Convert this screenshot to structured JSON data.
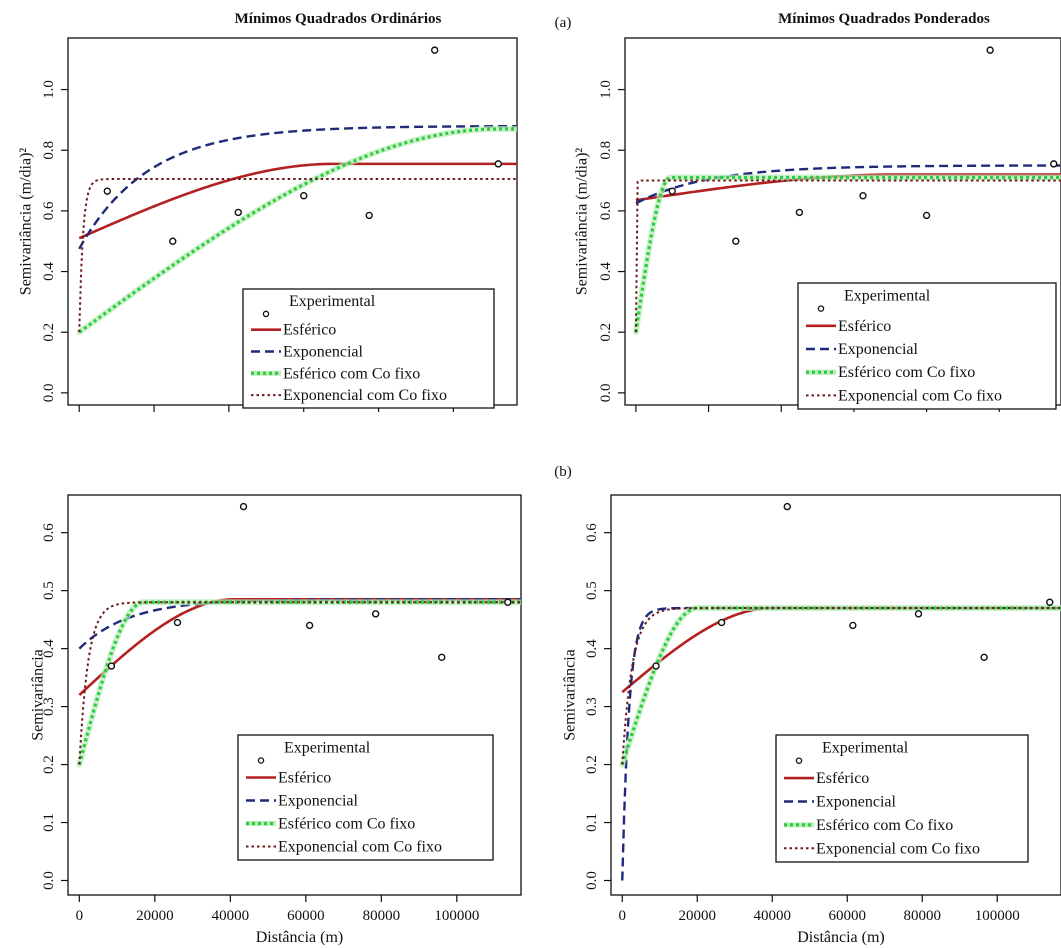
{
  "panel_labels": [
    "(a)",
    "(b)"
  ],
  "colors": {
    "Esférico": "#b32020",
    "Exponencial": "#1f2a7a",
    "Esférico com Co fixo": "#2ecc40",
    "Exponencial com Co fixo": "#6b1a1a",
    "points": "#111111"
  },
  "chart_data": [
    {
      "id": "a-ols",
      "type": "line",
      "title": "Mínimos Quadrados Ordinários",
      "ylabel": "Semivariância (m/dia)²",
      "xlabel": "",
      "xlim": [
        -3000,
        117000
      ],
      "ylim": [
        -0.04,
        1.17
      ],
      "yticks": [
        0.0,
        0.2,
        0.4,
        0.6,
        0.8,
        1.0
      ],
      "ytick_labels": [
        "0.0",
        "0.2",
        "0.4",
        "0.6",
        "0.8",
        "1.0"
      ],
      "xticks": [
        0,
        20000,
        40000,
        60000,
        80000,
        100000
      ],
      "xtick_labels": [],
      "legend_position": "bottom-right",
      "legend": [
        "Experimental",
        "Esférico",
        "Exponencial",
        "Esférico com Co fixo",
        "Exponencial com Co fixo"
      ],
      "experimental": {
        "x": [
          7500,
          25000,
          42500,
          60000,
          77500,
          95000,
          112000
        ],
        "y": [
          0.665,
          0.5,
          0.595,
          0.65,
          0.585,
          1.13,
          0.755
        ]
      },
      "series": [
        {
          "name": "Esférico",
          "model": "spherical",
          "nugget": 0.51,
          "sill": 0.755,
          "range": 68000
        },
        {
          "name": "Exponencial",
          "model": "exponential",
          "nugget": 0.475,
          "sill": 0.88,
          "range": 55000
        },
        {
          "name": "Esférico com Co fixo",
          "model": "spherical",
          "nugget": 0.2,
          "sill": 0.87,
          "range": 112000
        },
        {
          "name": "Exponencial com Co fixo",
          "model": "exponential",
          "nugget": 0.2,
          "sill": 0.705,
          "range": 3000
        }
      ]
    },
    {
      "id": "a-wls",
      "type": "line",
      "title": "Mínimos Quadrados Ponderados",
      "ylabel": "Semivariância (m/dia)²",
      "xlabel": "",
      "xlim": [
        -3000,
        117000
      ],
      "ylim": [
        -0.04,
        1.17
      ],
      "yticks": [
        0.0,
        0.2,
        0.4,
        0.6,
        0.8,
        1.0
      ],
      "ytick_labels": [
        "0.0",
        "0.2",
        "0.4",
        "0.6",
        "0.8",
        "1.0"
      ],
      "xticks": [
        0,
        20000,
        40000,
        60000,
        80000,
        100000
      ],
      "xtick_labels": [],
      "legend_position": "bottom-right",
      "legend": [
        "Experimental",
        "Esférico",
        "Exponencial",
        "Esférico com Co fixo",
        "Exponencial com Co fixo"
      ],
      "experimental": {
        "x": [
          10000,
          27500,
          45000,
          62500,
          80000,
          97500,
          115000
        ],
        "y": [
          0.665,
          0.5,
          0.595,
          0.65,
          0.585,
          1.13,
          0.755
        ]
      },
      "series": [
        {
          "name": "Esférico",
          "model": "spherical",
          "nugget": 0.635,
          "sill": 0.72,
          "range": 72000
        },
        {
          "name": "Exponencial",
          "model": "exponential",
          "nugget": 0.625,
          "sill": 0.75,
          "range": 60000
        },
        {
          "name": "Esférico com Co fixo",
          "model": "spherical",
          "nugget": 0.2,
          "sill": 0.71,
          "range": 9500
        },
        {
          "name": "Exponencial com Co fixo",
          "model": "exponential",
          "nugget": 0.2,
          "sill": 0.7,
          "range": 300
        }
      ]
    },
    {
      "id": "b-ols",
      "type": "line",
      "title": "",
      "ylabel": "Semivariância",
      "xlabel": "Distância (m)",
      "xlim": [
        -3000,
        117000
      ],
      "ylim": [
        -0.025,
        0.665
      ],
      "yticks": [
        0.0,
        0.1,
        0.2,
        0.3,
        0.4,
        0.5,
        0.6
      ],
      "ytick_labels": [
        "0.0",
        "0.1",
        "0.2",
        "0.3",
        "0.4",
        "0.5",
        "0.6"
      ],
      "xticks": [
        0,
        20000,
        40000,
        60000,
        80000,
        100000
      ],
      "xtick_labels": [
        "0",
        "20000",
        "40000",
        "60000",
        "80000",
        "100000"
      ],
      "legend_position": "bottom-right",
      "legend": [
        "Experimental",
        "Esférico",
        "Exponencial",
        "Esférico com Co fixo",
        "Exponencial com Co fixo"
      ],
      "experimental": {
        "x": [
          8500,
          26000,
          43500,
          61000,
          78500,
          96000,
          113500
        ],
        "y": [
          0.37,
          0.445,
          0.645,
          0.44,
          0.46,
          0.385,
          0.48
        ]
      },
      "series": [
        {
          "name": "Esférico",
          "model": "spherical",
          "nugget": 0.32,
          "sill": 0.485,
          "range": 41000
        },
        {
          "name": "Exponencial",
          "model": "exponential",
          "nugget": 0.4,
          "sill": 0.485,
          "range": 40000
        },
        {
          "name": "Esférico com Co fixo",
          "model": "spherical",
          "nugget": 0.2,
          "sill": 0.48,
          "range": 17000
        },
        {
          "name": "Exponencial com Co fixo",
          "model": "exponential",
          "nugget": 0.2,
          "sill": 0.48,
          "range": 7000
        }
      ]
    },
    {
      "id": "b-wls",
      "type": "line",
      "title": "",
      "ylabel": "Semivariância",
      "xlabel": "Distância (m)",
      "xlim": [
        -3000,
        117000
      ],
      "ylim": [
        -0.025,
        0.665
      ],
      "yticks": [
        0.0,
        0.1,
        0.2,
        0.3,
        0.4,
        0.5,
        0.6
      ],
      "ytick_labels": [
        "0.0",
        "0.1",
        "0.2",
        "0.3",
        "0.4",
        "0.5",
        "0.6"
      ],
      "xticks": [
        0,
        20000,
        40000,
        60000,
        80000,
        100000
      ],
      "xtick_labels": [
        "0",
        "20000",
        "40000",
        "60000",
        "80000",
        "100000"
      ],
      "legend_position": "bottom-right",
      "legend": [
        "Experimental",
        "Esférico",
        "Exponencial",
        "Esférico com Co fixo",
        "Exponencial com Co fixo"
      ],
      "experimental": {
        "x": [
          9000,
          26500,
          44000,
          61500,
          79000,
          96500,
          114000
        ],
        "y": [
          0.37,
          0.445,
          0.645,
          0.44,
          0.46,
          0.385,
          0.48
        ]
      },
      "series": [
        {
          "name": "Esférico",
          "model": "spherical",
          "nugget": 0.325,
          "sill": 0.47,
          "range": 40000
        },
        {
          "name": "Exponencial",
          "model": "exponential",
          "nugget": 0.0,
          "sill": 0.47,
          "range": 5500
        },
        {
          "name": "Esférico com Co fixo",
          "model": "spherical",
          "nugget": 0.2,
          "sill": 0.47,
          "range": 20000
        },
        {
          "name": "Exponencial com Co fixo",
          "model": "exponential",
          "nugget": 0.2,
          "sill": 0.47,
          "range": 8000
        }
      ]
    }
  ]
}
